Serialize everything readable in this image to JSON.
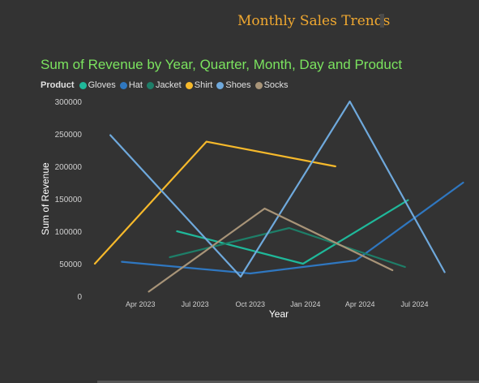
{
  "header": {
    "title": "Monthly Sales Trends"
  },
  "chart_data": {
    "type": "line",
    "title": "Sum of Revenue by Year, Quarter, Month, Day and Product",
    "xlabel": "Year",
    "ylabel": "Sum of Revenue",
    "legend_title": "Product",
    "legend_position": "top-left",
    "ylim": [
      0,
      300000
    ],
    "yticks": [
      0,
      50000,
      100000,
      150000,
      200000,
      250000,
      300000
    ],
    "xlim": [
      "2023-01-15",
      "2024-09-22"
    ],
    "xticks": [
      "2023-04-01",
      "2023-07-01",
      "2023-10-01",
      "2024-01-01",
      "2024-04-01",
      "2024-07-01"
    ],
    "xtick_labels": [
      "Apr 2023",
      "Jul 2023",
      "Oct 2023",
      "Jan 2024",
      "Apr 2024",
      "Jul 2024"
    ],
    "grid": false,
    "series": [
      {
        "name": "Gloves",
        "color": "#1fb89a",
        "points": [
          [
            "2023-06-01",
            100000
          ],
          [
            "2023-12-28",
            50000
          ],
          [
            "2024-06-20",
            148000
          ]
        ]
      },
      {
        "name": "Hat",
        "color": "#2f77c0",
        "points": [
          [
            "2023-03-01",
            53000
          ],
          [
            "2023-10-01",
            35000
          ],
          [
            "2024-03-25",
            55000
          ],
          [
            "2024-09-20",
            175000
          ]
        ]
      },
      {
        "name": "Jacket",
        "color": "#1e7e68",
        "points": [
          [
            "2023-05-20",
            60000
          ],
          [
            "2023-12-05",
            105000
          ],
          [
            "2024-06-15",
            45000
          ]
        ]
      },
      {
        "name": "Shirt",
        "color": "#f6b92b",
        "points": [
          [
            "2023-01-15",
            50000
          ],
          [
            "2023-07-20",
            238000
          ],
          [
            "2024-02-20",
            200000
          ]
        ]
      },
      {
        "name": "Shoes",
        "color": "#6fa9dc",
        "points": [
          [
            "2023-02-10",
            248000
          ],
          [
            "2023-09-15",
            30000
          ],
          [
            "2024-03-15",
            300000
          ],
          [
            "2024-08-20",
            37000
          ]
        ]
      },
      {
        "name": "Socks",
        "color": "#a89478",
        "points": [
          [
            "2023-04-15",
            7000
          ],
          [
            "2023-10-25",
            135000
          ],
          [
            "2024-05-25",
            40000
          ]
        ]
      }
    ]
  }
}
